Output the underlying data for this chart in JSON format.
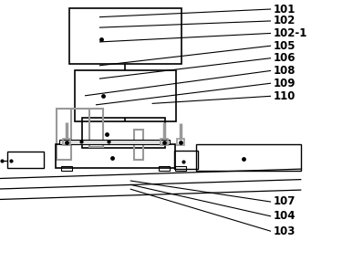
{
  "bg_color": "#ffffff",
  "line_color": "#000000",
  "gray_color": "#999999",
  "label_fontsize": 8.5,
  "label_fontweight": "bold",
  "label_data": [
    [
      "101",
      [
        0.275,
        0.935
      ],
      [
        0.745,
        0.965
      ]
    ],
    [
      "102",
      [
        0.275,
        0.895
      ],
      [
        0.745,
        0.92
      ]
    ],
    [
      "102-1",
      [
        0.275,
        0.84
      ],
      [
        0.745,
        0.873
      ]
    ],
    [
      "105",
      [
        0.275,
        0.75
      ],
      [
        0.745,
        0.825
      ]
    ],
    [
      "106",
      [
        0.275,
        0.7
      ],
      [
        0.745,
        0.778
      ]
    ],
    [
      "108",
      [
        0.235,
        0.635
      ],
      [
        0.745,
        0.73
      ]
    ],
    [
      "109",
      [
        0.265,
        0.6
      ],
      [
        0.745,
        0.682
      ]
    ],
    [
      "110",
      [
        0.42,
        0.605
      ],
      [
        0.745,
        0.633
      ]
    ],
    [
      "107",
      [
        0.36,
        0.31
      ],
      [
        0.745,
        0.23
      ]
    ],
    [
      "104",
      [
        0.36,
        0.295
      ],
      [
        0.745,
        0.175
      ]
    ],
    [
      "103",
      [
        0.36,
        0.278
      ],
      [
        0.745,
        0.118
      ]
    ]
  ]
}
